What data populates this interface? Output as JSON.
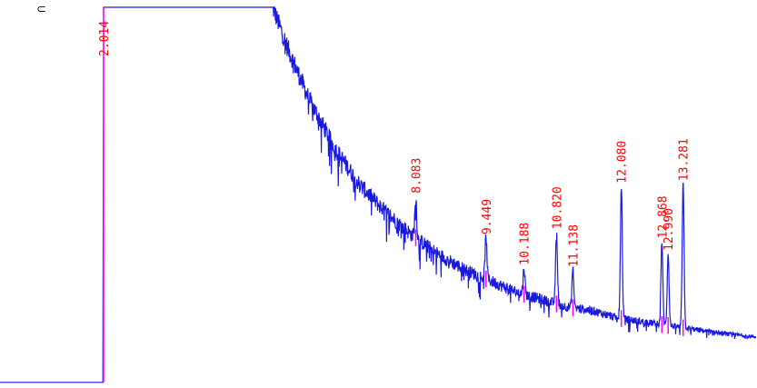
{
  "chart_data": {
    "type": "line",
    "title": "",
    "xlabel": "",
    "ylabel": "",
    "corner_mark": "⊂",
    "x_range": [
      0.0,
      14.7
    ],
    "y_range": [
      0,
      100
    ],
    "colors": {
      "trace": "#1a1adf",
      "label": "#ff0000",
      "marker": "#ff00ff",
      "background": "#ffffff"
    },
    "series": [
      {
        "points": [
          [
            0.0,
            1
          ],
          [
            2.0,
            1
          ],
          [
            2.014,
            100
          ],
          [
            5.3,
            100
          ],
          [
            5.6,
            89
          ],
          [
            6.0,
            76
          ],
          [
            6.5,
            63
          ],
          [
            7.0,
            53
          ],
          [
            7.5,
            46
          ],
          [
            8.0,
            40
          ],
          [
            8.5,
            35
          ],
          [
            9.0,
            31
          ],
          [
            9.5,
            28
          ],
          [
            10.0,
            25
          ],
          [
            10.5,
            23
          ],
          [
            11.0,
            21
          ],
          [
            11.5,
            20
          ],
          [
            12.0,
            18
          ],
          [
            12.5,
            17
          ],
          [
            13.0,
            16
          ],
          [
            13.5,
            15
          ],
          [
            14.0,
            14
          ],
          [
            14.7,
            13
          ]
        ]
      }
    ],
    "peaks": [
      {
        "label": "2.014",
        "rt": 2.014,
        "height": 0
      },
      {
        "label": "8.083",
        "rt": 8.083,
        "height": 11
      },
      {
        "label": "9.449",
        "rt": 9.449,
        "height": 11
      },
      {
        "label": "10.188",
        "rt": 10.188,
        "height": 7
      },
      {
        "label": "10.820",
        "rt": 10.82,
        "height": 19
      },
      {
        "label": "11.138",
        "rt": 11.138,
        "height": 10
      },
      {
        "label": "12.080",
        "rt": 12.08,
        "height": 35
      },
      {
        "label": "12.868",
        "rt": 12.868,
        "height": 22
      },
      {
        "label": "12.990",
        "rt": 12.99,
        "height": 19
      },
      {
        "label": "13.281",
        "rt": 13.281,
        "height": 38
      }
    ]
  }
}
